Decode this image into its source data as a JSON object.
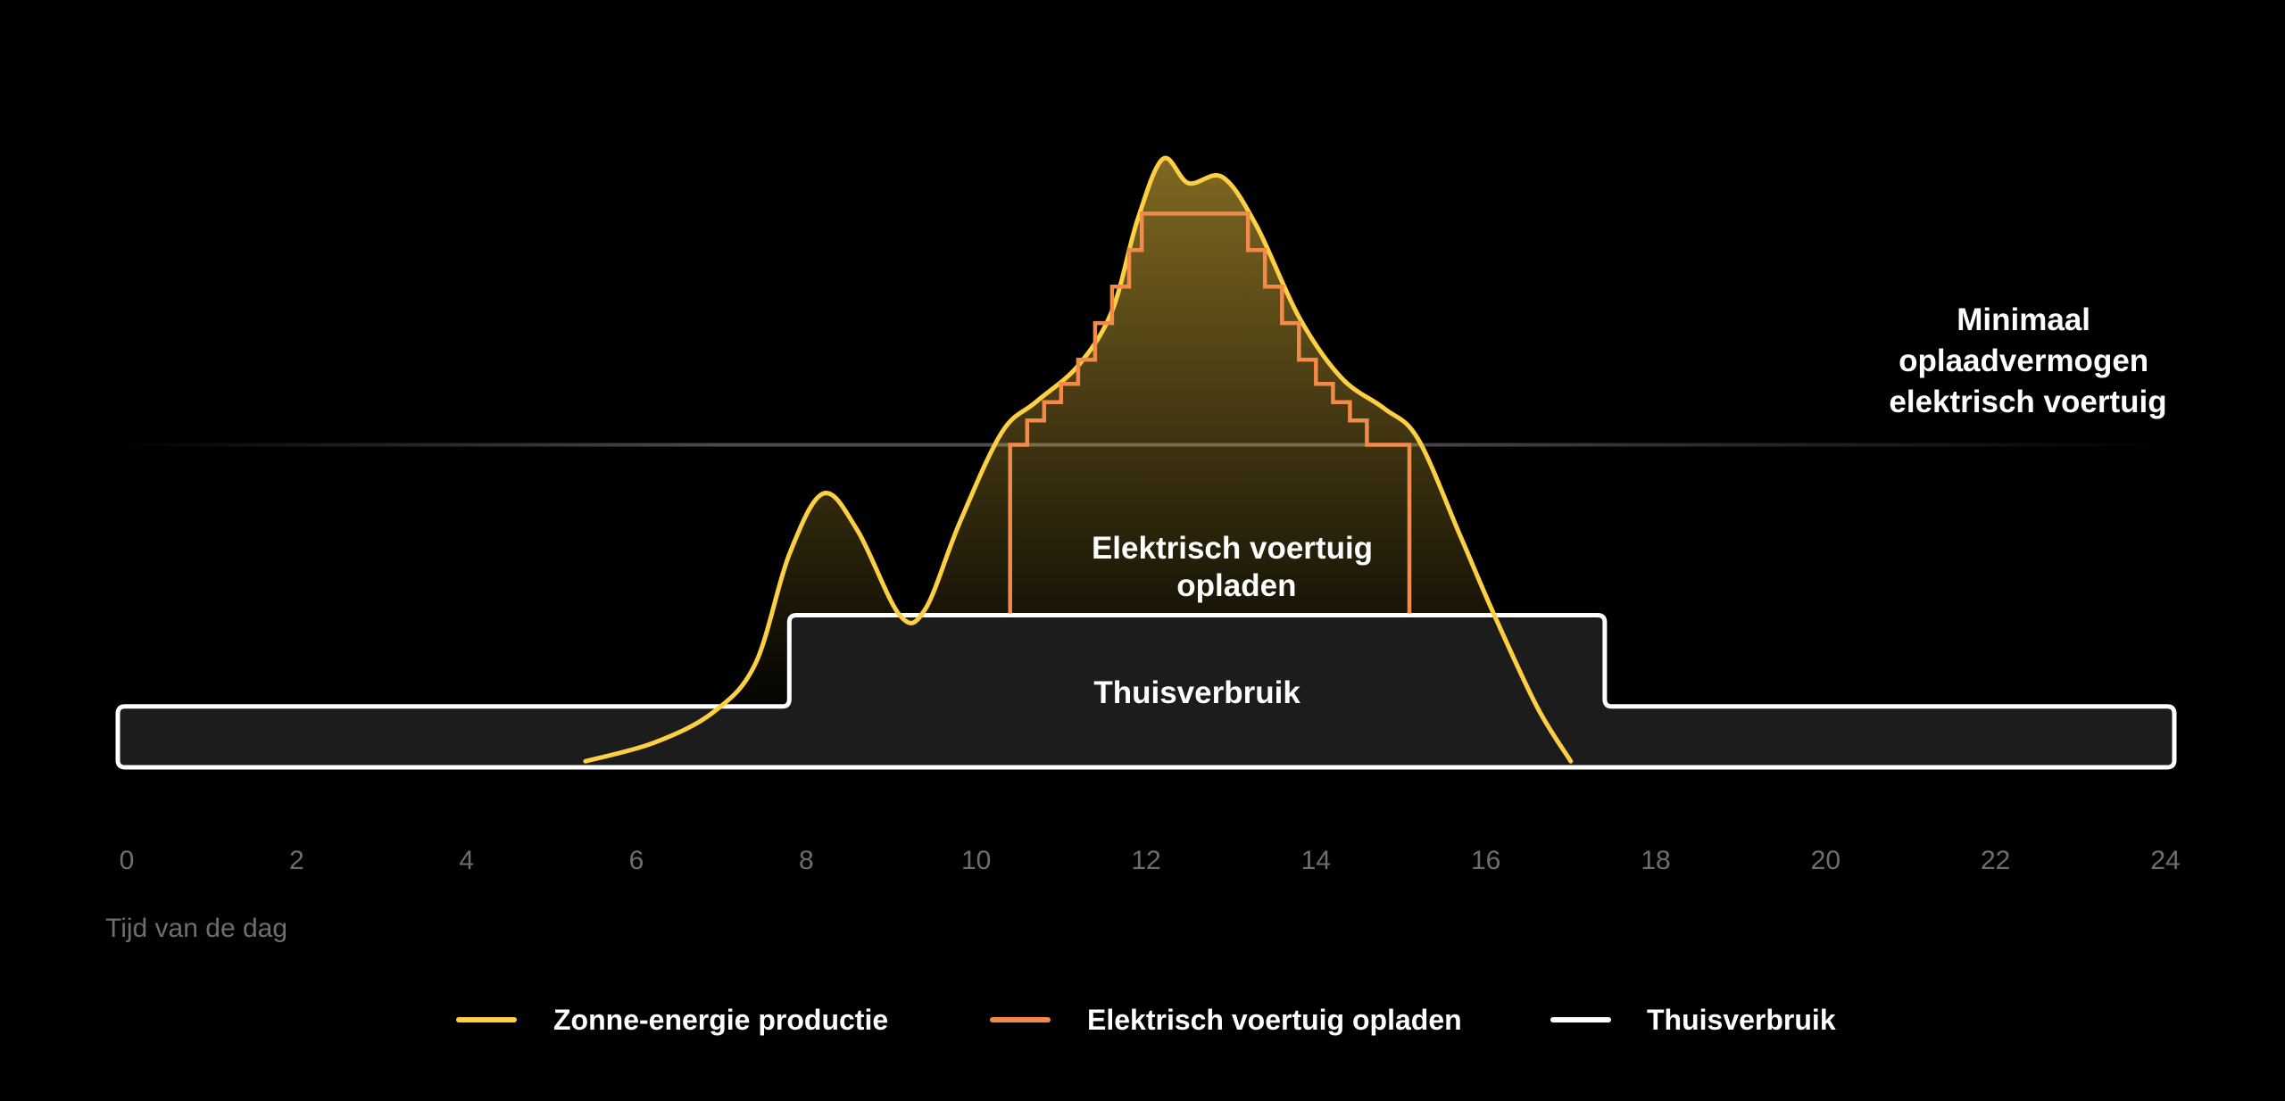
{
  "chart_data": {
    "type": "area",
    "xlabel": "Tijd van de dag",
    "xlim": [
      0,
      24
    ],
    "xticks": [
      0,
      2,
      4,
      6,
      8,
      10,
      12,
      14,
      16,
      18,
      20,
      22,
      24
    ],
    "ylim": [
      0,
      1
    ],
    "threshold": {
      "label_lines": [
        "Minimaal",
        "oplaadvermogen",
        "elektrisch voertuig"
      ],
      "y": 0.53
    },
    "series": [
      {
        "name": "Zonne-energie productie",
        "color": "#fdd043",
        "points": [
          [
            5.4,
            0.01
          ],
          [
            6.2,
            0.04
          ],
          [
            6.9,
            0.09
          ],
          [
            7.4,
            0.17
          ],
          [
            7.8,
            0.35
          ],
          [
            8.2,
            0.45
          ],
          [
            8.6,
            0.39
          ],
          [
            9.1,
            0.25
          ],
          [
            9.4,
            0.26
          ],
          [
            9.8,
            0.4
          ],
          [
            10.3,
            0.55
          ],
          [
            10.7,
            0.6
          ],
          [
            11.2,
            0.66
          ],
          [
            11.6,
            0.75
          ],
          [
            11.9,
            0.9
          ],
          [
            12.2,
            1.0
          ],
          [
            12.5,
            0.96
          ],
          [
            12.9,
            0.97
          ],
          [
            13.3,
            0.89
          ],
          [
            13.8,
            0.74
          ],
          [
            14.3,
            0.64
          ],
          [
            14.8,
            0.59
          ],
          [
            15.2,
            0.54
          ],
          [
            15.7,
            0.38
          ],
          [
            16.1,
            0.25
          ],
          [
            16.6,
            0.1
          ],
          [
            17.0,
            0.01
          ]
        ]
      },
      {
        "name": "Elektrisch voertuig opladen",
        "color": "#f28a4a",
        "start": 10.4,
        "end": 15.1,
        "steps": [
          [
            10.6,
            0.53
          ],
          [
            10.8,
            0.57
          ],
          [
            11.0,
            0.6
          ],
          [
            11.2,
            0.63
          ],
          [
            11.4,
            0.67
          ],
          [
            11.6,
            0.73
          ],
          [
            11.8,
            0.79
          ],
          [
            11.95,
            0.85
          ],
          [
            12.4,
            0.91
          ],
          [
            13.2,
            0.91
          ],
          [
            13.4,
            0.85
          ],
          [
            13.6,
            0.79
          ],
          [
            13.8,
            0.73
          ],
          [
            14.0,
            0.67
          ],
          [
            14.2,
            0.63
          ],
          [
            14.4,
            0.6
          ],
          [
            14.6,
            0.57
          ],
          [
            15.1,
            0.53
          ]
        ],
        "label_lines": [
          "Elektrisch voertuig",
          "opladen"
        ]
      },
      {
        "name": "Thuisverbruik",
        "color": "#ffffff",
        "base_level": 0.1,
        "peak_level": 0.25,
        "peak_start": 7.8,
        "peak_end": 17.4,
        "label": "Thuisverbruik"
      }
    ],
    "legend": {
      "placement": "bottom"
    }
  }
}
